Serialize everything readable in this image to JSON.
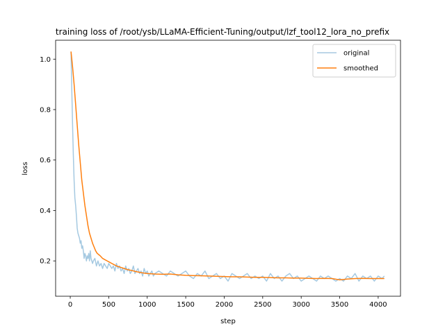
{
  "chart_data": {
    "type": "line",
    "title": "training loss of /root/ysb/LLaMA-Efficient-Tuning/output/lzf_tool12_lora_no_prefix",
    "xlabel": "step",
    "ylabel": "loss",
    "xlim": [
      -190,
      4290
    ],
    "ylim": [
      0.06,
      1.075
    ],
    "xticks": [
      0,
      500,
      1000,
      1500,
      2000,
      2500,
      3000,
      3500,
      4000
    ],
    "xtick_labels": [
      "0",
      "500",
      "1000",
      "1500",
      "2000",
      "2500",
      "3000",
      "3500",
      "4000"
    ],
    "yticks": [
      0.2,
      0.4,
      0.6,
      0.8,
      1.0
    ],
    "ytick_labels": [
      "0.2",
      "0.4",
      "0.6",
      "0.8",
      "1.0"
    ],
    "grid": false,
    "legend_position": "top-right",
    "series": [
      {
        "name": "original",
        "color": "#1f77b4",
        "opacity": 0.4,
        "x": [
          10,
          20,
          30,
          40,
          50,
          60,
          70,
          80,
          90,
          100,
          110,
          120,
          130,
          140,
          150,
          160,
          170,
          180,
          190,
          200,
          210,
          220,
          230,
          240,
          250,
          260,
          270,
          280,
          290,
          300,
          320,
          340,
          360,
          380,
          400,
          420,
          440,
          460,
          480,
          500,
          520,
          540,
          560,
          580,
          600,
          620,
          640,
          660,
          680,
          700,
          720,
          740,
          760,
          780,
          800,
          820,
          840,
          860,
          880,
          900,
          920,
          940,
          960,
          980,
          1000,
          1020,
          1040,
          1060,
          1080,
          1100,
          1150,
          1200,
          1250,
          1300,
          1350,
          1400,
          1450,
          1500,
          1550,
          1600,
          1650,
          1700,
          1750,
          1800,
          1850,
          1900,
          1950,
          2000,
          2050,
          2100,
          2150,
          2200,
          2250,
          2300,
          2350,
          2400,
          2450,
          2500,
          2550,
          2600,
          2650,
          2700,
          2750,
          2800,
          2850,
          2900,
          2950,
          3000,
          3050,
          3100,
          3150,
          3200,
          3250,
          3300,
          3350,
          3400,
          3450,
          3500,
          3550,
          3600,
          3650,
          3700,
          3750,
          3800,
          3850,
          3900,
          3950,
          4000,
          4050,
          4080
        ],
        "y": [
          1.03,
          0.88,
          0.74,
          0.62,
          0.52,
          0.45,
          0.42,
          0.38,
          0.33,
          0.31,
          0.3,
          0.29,
          0.27,
          0.28,
          0.25,
          0.26,
          0.24,
          0.21,
          0.23,
          0.22,
          0.2,
          0.22,
          0.21,
          0.23,
          0.2,
          0.24,
          0.21,
          0.2,
          0.19,
          0.2,
          0.21,
          0.18,
          0.2,
          0.18,
          0.19,
          0.17,
          0.19,
          0.18,
          0.17,
          0.19,
          0.18,
          0.17,
          0.18,
          0.16,
          0.19,
          0.17,
          0.18,
          0.16,
          0.17,
          0.15,
          0.18,
          0.16,
          0.17,
          0.15,
          0.16,
          0.18,
          0.15,
          0.16,
          0.17,
          0.15,
          0.16,
          0.14,
          0.17,
          0.15,
          0.16,
          0.14,
          0.15,
          0.16,
          0.14,
          0.15,
          0.16,
          0.15,
          0.14,
          0.16,
          0.15,
          0.14,
          0.15,
          0.16,
          0.14,
          0.13,
          0.15,
          0.14,
          0.16,
          0.13,
          0.14,
          0.15,
          0.13,
          0.14,
          0.12,
          0.15,
          0.14,
          0.13,
          0.14,
          0.15,
          0.13,
          0.14,
          0.13,
          0.14,
          0.12,
          0.15,
          0.13,
          0.14,
          0.12,
          0.14,
          0.15,
          0.13,
          0.14,
          0.12,
          0.13,
          0.14,
          0.13,
          0.12,
          0.14,
          0.13,
          0.14,
          0.13,
          0.12,
          0.13,
          0.12,
          0.14,
          0.13,
          0.15,
          0.12,
          0.14,
          0.13,
          0.14,
          0.12,
          0.14,
          0.13,
          0.14
        ]
      },
      {
        "name": "smoothed",
        "color": "#ff7f0e",
        "opacity": 1,
        "x": [
          10,
          30,
          50,
          70,
          90,
          110,
          130,
          150,
          170,
          190,
          210,
          230,
          250,
          270,
          290,
          310,
          330,
          350,
          370,
          390,
          420,
          450,
          480,
          510,
          540,
          570,
          600,
          650,
          700,
          750,
          800,
          850,
          900,
          950,
          1000,
          1100,
          1200,
          1300,
          1400,
          1500,
          1600,
          1700,
          1800,
          1900,
          2000,
          2100,
          2200,
          2300,
          2400,
          2500,
          2600,
          2700,
          2800,
          2900,
          3000,
          3100,
          3200,
          3300,
          3400,
          3500,
          3600,
          3700,
          3800,
          3900,
          4000,
          4080
        ],
        "y": [
          1.03,
          0.97,
          0.9,
          0.82,
          0.74,
          0.66,
          0.59,
          0.52,
          0.47,
          0.42,
          0.38,
          0.34,
          0.31,
          0.29,
          0.27,
          0.255,
          0.24,
          0.23,
          0.225,
          0.22,
          0.21,
          0.205,
          0.2,
          0.195,
          0.19,
          0.185,
          0.18,
          0.175,
          0.17,
          0.165,
          0.162,
          0.158,
          0.155,
          0.152,
          0.15,
          0.148,
          0.147,
          0.148,
          0.145,
          0.143,
          0.142,
          0.141,
          0.14,
          0.139,
          0.138,
          0.137,
          0.137,
          0.136,
          0.135,
          0.135,
          0.134,
          0.133,
          0.133,
          0.132,
          0.132,
          0.131,
          0.13,
          0.131,
          0.13,
          0.125,
          0.128,
          0.13,
          0.131,
          0.13,
          0.13,
          0.13
        ]
      }
    ]
  }
}
